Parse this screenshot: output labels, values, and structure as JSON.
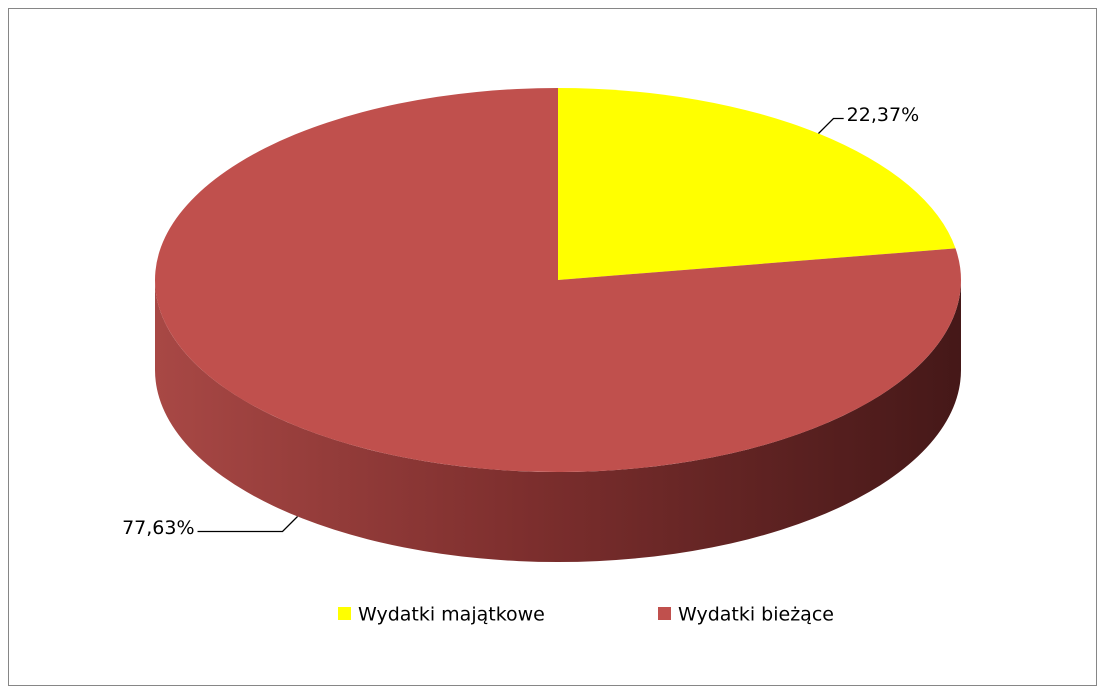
{
  "chart_data": {
    "type": "pie",
    "categories": [
      "Wydatki majątkowe",
      "Wydatki bieżące"
    ],
    "values": [
      22.37,
      77.63
    ],
    "value_labels": [
      "22,37%",
      "77,63%"
    ],
    "colors": [
      "#ffff00",
      "#c0504d"
    ],
    "legend": "bottom"
  }
}
